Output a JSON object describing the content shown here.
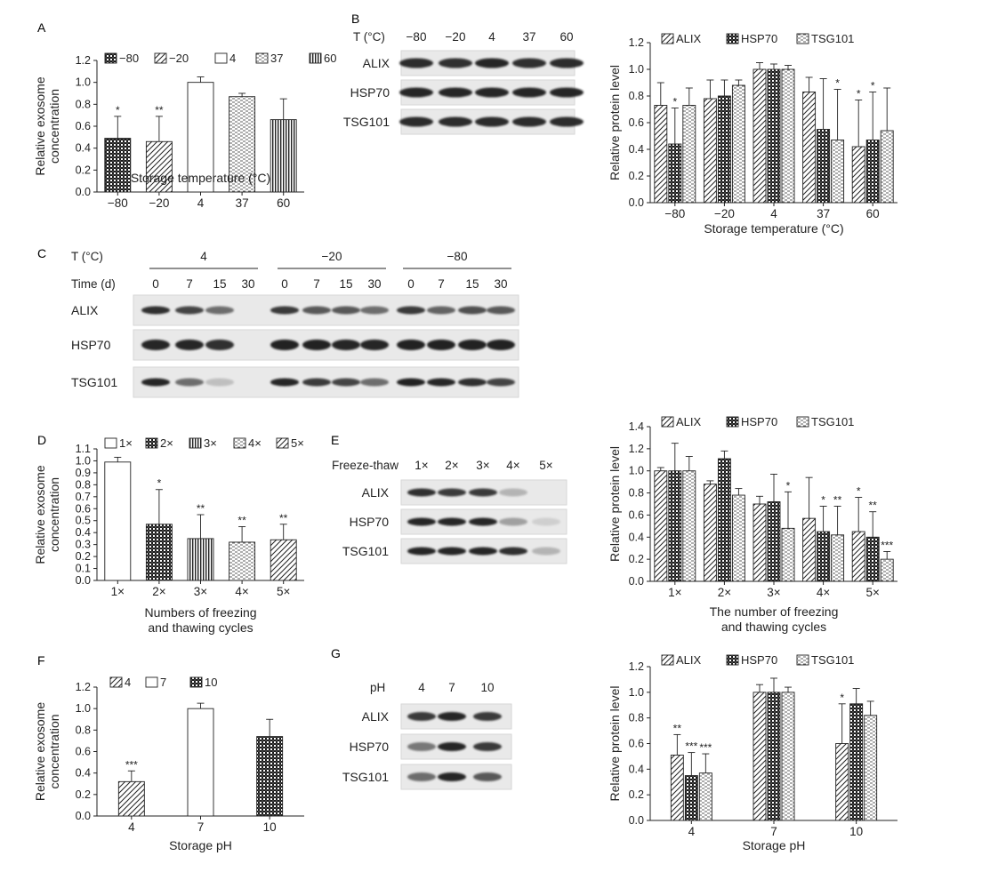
{
  "colors": {
    "ink": "#222222",
    "band": "#1a1a1a",
    "blot_bg": "#e9e9e9"
  },
  "panels": {
    "A": {
      "label": "A",
      "legend": [
        "−80",
        "−20",
        "4",
        "37",
        "60"
      ]
    },
    "B": {
      "label": "B",
      "blot_header": "T (°C)",
      "lanes": [
        "−80",
        "−20",
        "4",
        "37",
        "60"
      ],
      "proteins": [
        "ALIX",
        "HSP70",
        "TSG101"
      ]
    },
    "C": {
      "label": "C",
      "temp_header": "T (°C)",
      "time_header": "Time (d)",
      "temps": [
        "4",
        "−20",
        "−80"
      ],
      "times": [
        "0",
        "7",
        "15",
        "30"
      ],
      "proteins": [
        "ALIX",
        "HSP70",
        "TSG101"
      ]
    },
    "D": {
      "label": "D"
    },
    "E": {
      "label": "E",
      "blot_header": "Freeze-thaw",
      "lanes": [
        "1×",
        "2×",
        "3×",
        "4×",
        "5×"
      ],
      "proteins": [
        "ALIX",
        "HSP70",
        "TSG101"
      ]
    },
    "F": {
      "label": "F"
    },
    "G": {
      "label": "G",
      "blot_header": "pH",
      "lanes": [
        "4",
        "7",
        "10"
      ],
      "proteins": [
        "ALIX",
        "HSP70",
        "TSG101"
      ]
    }
  },
  "chart_data": [
    {
      "id": "A",
      "type": "bar",
      "categories": [
        "−80",
        "−20",
        "4",
        "37",
        "60"
      ],
      "values": [
        0.49,
        0.46,
        1.0,
        0.87,
        0.66
      ],
      "errors": [
        0.2,
        0.23,
        0.05,
        0.03,
        0.19
      ],
      "sig": [
        "*",
        "**",
        "",
        "",
        ""
      ],
      "xlabel": "Storage temperature (°C)",
      "ylabel": "Relative exosome concentration",
      "ylim": [
        0,
        1.2
      ],
      "yticks": [
        "0.0",
        "0.2",
        "0.4",
        "0.6",
        "0.8",
        "1.0",
        "1.2"
      ],
      "legend": "top"
    },
    {
      "id": "B2",
      "type": "bar",
      "categories": [
        "−80",
        "−20",
        "4",
        "37",
        "60"
      ],
      "series": [
        {
          "name": "ALIX",
          "values": [
            0.73,
            0.78,
            1.0,
            0.83,
            0.42
          ],
          "errors": [
            0.17,
            0.14,
            0.05,
            0.11,
            0.35
          ],
          "sig": [
            "",
            "",
            "",
            "",
            "*"
          ]
        },
        {
          "name": "HSP70",
          "values": [
            0.44,
            0.8,
            1.0,
            0.55,
            0.47
          ],
          "errors": [
            0.27,
            0.12,
            0.04,
            0.38,
            0.36
          ],
          "sig": [
            "*",
            "",
            "",
            "",
            "*"
          ]
        },
        {
          "name": "TSG101",
          "values": [
            0.73,
            0.88,
            1.0,
            0.47,
            0.54
          ],
          "errors": [
            0.13,
            0.04,
            0.03,
            0.38,
            0.32
          ],
          "sig": [
            "",
            "",
            "",
            "*",
            ""
          ]
        }
      ],
      "xlabel": "Storage temperature (°C)",
      "ylabel": "Relative protein level",
      "ylim": [
        0,
        1.2
      ],
      "yticks": [
        "0.0",
        "0.2",
        "0.4",
        "0.6",
        "0.8",
        "1.0",
        "1.2"
      ],
      "legend": "top"
    },
    {
      "id": "D",
      "type": "bar",
      "categories": [
        "1×",
        "2×",
        "3×",
        "4×",
        "5×"
      ],
      "values": [
        0.99,
        0.47,
        0.35,
        0.32,
        0.34
      ],
      "errors": [
        0.04,
        0.29,
        0.2,
        0.13,
        0.13
      ],
      "sig": [
        "",
        "*",
        "**",
        "**",
        "**"
      ],
      "xlabel": "Numbers of freezing and thawing cycles",
      "ylabel": "Relative exosome concentration",
      "ylim": [
        0,
        1.1
      ],
      "yticks": [
        "0.0",
        "0.1",
        "0.2",
        "0.3",
        "0.4",
        "0.5",
        "0.6",
        "0.7",
        "0.8",
        "0.9",
        "1.0",
        "1.1"
      ],
      "legend": "top"
    },
    {
      "id": "E2",
      "type": "bar",
      "categories": [
        "1×",
        "2×",
        "3×",
        "4×",
        "5×"
      ],
      "series": [
        {
          "name": "ALIX",
          "values": [
            1.0,
            0.88,
            0.7,
            0.57,
            0.45
          ],
          "errors": [
            0.03,
            0.03,
            0.07,
            0.37,
            0.31
          ],
          "sig": [
            "",
            "",
            "",
            "",
            "*"
          ]
        },
        {
          "name": "HSP70",
          "values": [
            1.0,
            1.11,
            0.72,
            0.45,
            0.4
          ],
          "errors": [
            0.25,
            0.07,
            0.25,
            0.23,
            0.23
          ],
          "sig": [
            "",
            "",
            "",
            "*",
            "**"
          ]
        },
        {
          "name": "TSG101",
          "values": [
            1.0,
            0.78,
            0.48,
            0.42,
            0.2
          ],
          "errors": [
            0.13,
            0.06,
            0.33,
            0.26,
            0.07
          ],
          "sig": [
            "",
            "",
            "*",
            "**",
            "***"
          ]
        }
      ],
      "xlabel": "The number of freezing and thawing cycles",
      "ylabel": "Relative protein level",
      "ylim": [
        0,
        1.4
      ],
      "yticks": [
        "0.0",
        "0.2",
        "0.4",
        "0.6",
        "0.8",
        "1.0",
        "1.2",
        "1.4"
      ],
      "legend": "top"
    },
    {
      "id": "F",
      "type": "bar",
      "categories": [
        "4",
        "7",
        "10"
      ],
      "values": [
        0.32,
        1.0,
        0.74
      ],
      "errors": [
        0.1,
        0.05,
        0.16
      ],
      "sig": [
        "***",
        "",
        ""
      ],
      "xlabel": "Storage pH",
      "ylabel": "Relative exosome concentration",
      "ylim": [
        0,
        1.2
      ],
      "yticks": [
        "0.0",
        "0.2",
        "0.4",
        "0.6",
        "0.8",
        "1.0",
        "1.2"
      ],
      "legend": "top"
    },
    {
      "id": "G2",
      "type": "bar",
      "categories": [
        "4",
        "7",
        "10"
      ],
      "series": [
        {
          "name": "ALIX",
          "values": [
            0.51,
            1.0,
            0.6
          ],
          "errors": [
            0.16,
            0.06,
            0.31
          ],
          "sig": [
            "**",
            "",
            "*"
          ]
        },
        {
          "name": "HSP70",
          "values": [
            0.35,
            1.0,
            0.91
          ],
          "errors": [
            0.18,
            0.11,
            0.12
          ],
          "sig": [
            "***",
            "",
            ""
          ]
        },
        {
          "name": "TSG101",
          "values": [
            0.37,
            1.0,
            0.82
          ],
          "errors": [
            0.15,
            0.04,
            0.11
          ],
          "sig": [
            "***",
            "",
            ""
          ]
        }
      ],
      "xlabel": "Storage pH",
      "ylabel": "Relative protein level",
      "ylim": [
        0,
        1.2
      ],
      "yticks": [
        "0.0",
        "0.2",
        "0.4",
        "0.6",
        "0.8",
        "1.0",
        "1.2"
      ],
      "legend": "top"
    }
  ]
}
